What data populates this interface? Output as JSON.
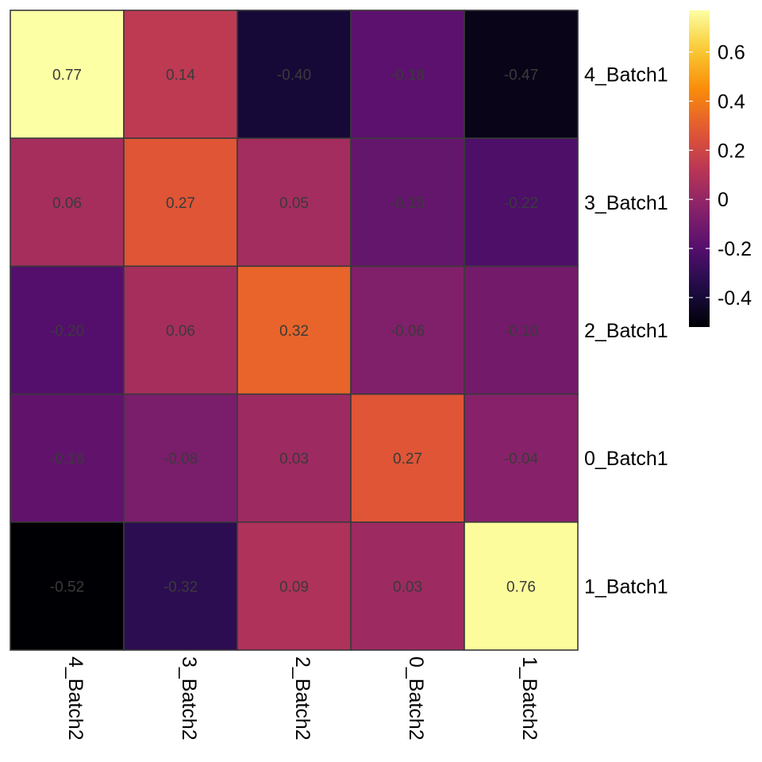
{
  "chart_data": {
    "type": "heatmap",
    "title": "",
    "xlabel": "",
    "ylabel": "",
    "x_categories": [
      "4_Batch2",
      "3_Batch2",
      "2_Batch2",
      "0_Batch2",
      "1_Batch2"
    ],
    "y_categories": [
      "4_Batch1",
      "3_Batch1",
      "2_Batch1",
      "0_Batch1",
      "1_Batch1"
    ],
    "values": [
      [
        0.77,
        0.14,
        -0.4,
        -0.18,
        -0.47
      ],
      [
        0.06,
        0.27,
        0.05,
        -0.15,
        -0.22
      ],
      [
        -0.2,
        0.06,
        0.32,
        -0.06,
        -0.1
      ],
      [
        -0.16,
        -0.08,
        0.03,
        0.27,
        -0.04
      ],
      [
        -0.52,
        -0.32,
        0.09,
        0.03,
        0.76
      ]
    ],
    "value_labels": [
      [
        "0.77",
        "0.14",
        "-0.40",
        "-0.18",
        "-0.47"
      ],
      [
        "0.06",
        "0.27",
        "0.05",
        "-0.15",
        "-0.22"
      ],
      [
        "-0.20",
        "0.06",
        "0.32",
        "-0.06",
        "-0.10"
      ],
      [
        "-0.16",
        "-0.08",
        "0.03",
        "0.27",
        "-0.04"
      ],
      [
        "-0.52",
        "-0.32",
        "0.09",
        "0.03",
        "0.76"
      ]
    ],
    "colormap": "inferno",
    "color_range": [
      -0.52,
      0.77
    ],
    "legend": {
      "placement": "right",
      "ticks": [
        -0.4,
        -0.2,
        0,
        0.2,
        0.4,
        0.6
      ],
      "tick_labels": [
        "-0.4",
        "-0.2",
        "0",
        "0.2",
        "0.4",
        "0.6"
      ]
    },
    "grid": false,
    "x_axis_position": "bottom",
    "y_axis_position": "right"
  }
}
